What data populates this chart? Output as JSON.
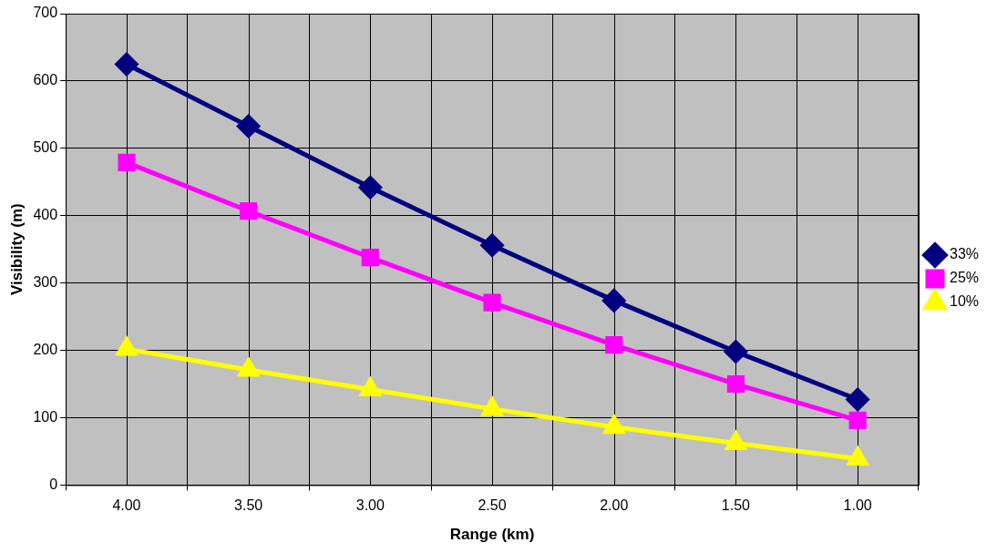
{
  "chart_data": {
    "type": "line",
    "xlabel": "Range (km)",
    "ylabel": "Visibility (m)",
    "categories": [
      "4.00",
      "3.50",
      "3.00",
      "2.50",
      "2.00",
      "1.50",
      "1.00"
    ],
    "ylim": [
      0,
      700
    ],
    "yticks": [
      0,
      100,
      200,
      300,
      400,
      500,
      600,
      700
    ],
    "grid": true,
    "legend": "right",
    "line_style": "solid",
    "series": [
      {
        "name": "33%",
        "color": "#000080",
        "marker": "diamond",
        "values": [
          625,
          533,
          442,
          356,
          274,
          198,
          127
        ]
      },
      {
        "name": "25%",
        "color": "#ff00ff",
        "marker": "square",
        "values": [
          479,
          407,
          338,
          271,
          208,
          150,
          96
        ]
      },
      {
        "name": "10%",
        "color": "#ffff00",
        "marker": "triangle",
        "values": [
          202,
          171,
          142,
          113,
          86,
          62,
          39
        ]
      }
    ]
  }
}
